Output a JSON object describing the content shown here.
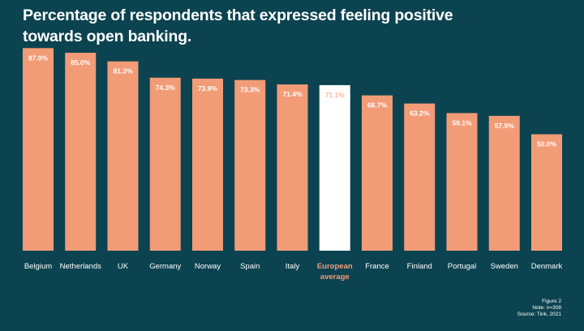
{
  "title": "Percentage of respondents that expressed feeling positive towards open banking.",
  "footer": {
    "figure": "Figure 2",
    "note": "Note: n=308",
    "source": "Source: Tink, 2021"
  },
  "colors": {
    "background": "#0c4350",
    "bar": "#f29c77",
    "highlight_bar": "#ffffff",
    "highlight_text": "#f29c77",
    "label_text": "#ffffff"
  },
  "chart_data": {
    "type": "bar",
    "title": "Percentage of respondents that expressed feeling positive towards open banking.",
    "xlabel": "",
    "ylabel": "",
    "grid": false,
    "ylim": [
      0,
      100
    ],
    "categories": [
      "Belgium",
      "Netherlands",
      "UK",
      "Germany",
      "Norway",
      "Spain",
      "Italy",
      "European average",
      "France",
      "Finland",
      "Portugal",
      "Sweden",
      "Denmark"
    ],
    "values": [
      87.0,
      85.0,
      81.3,
      74.3,
      73.9,
      73.3,
      71.4,
      71.1,
      66.7,
      63.2,
      59.1,
      57.9,
      50.0
    ],
    "value_labels": [
      "87.0%",
      "85.0%",
      "81.3%",
      "74.3%",
      "73.9%",
      "73.3%",
      "71.4%",
      "71.1%",
      "66.7%",
      "63.2%",
      "59.1%",
      "57.9%",
      "50.0%"
    ],
    "highlight": "European average"
  }
}
